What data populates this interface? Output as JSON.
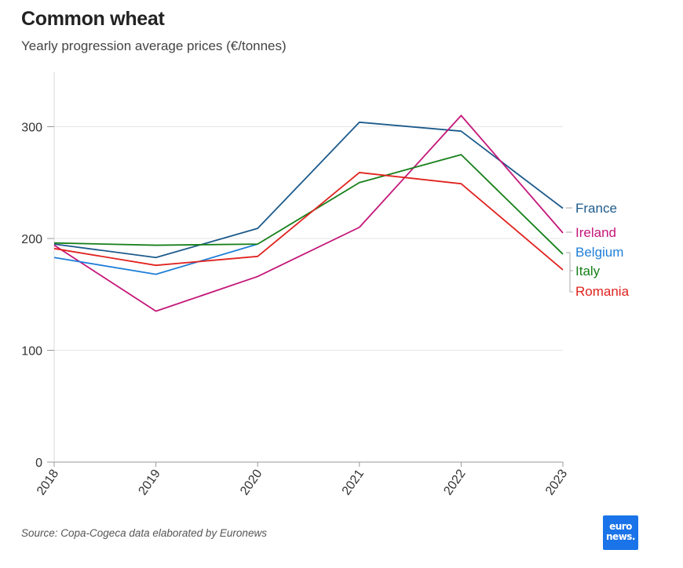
{
  "header": {
    "title": "Common wheat",
    "subtitle": "Yearly progression average prices (€/tonnes)"
  },
  "footer": {
    "source": "Source: Copa-Cogeca data elaborated by Euronews",
    "logo_line1": "euro",
    "logo_line2": "news."
  },
  "chart_data": {
    "type": "line",
    "title": "Common wheat",
    "subtitle": "Yearly progression average prices (€/tonnes)",
    "xlabel": "",
    "ylabel": "",
    "x": [
      "2018",
      "2019",
      "2020",
      "2021",
      "2022",
      "2023"
    ],
    "ylim": [
      0,
      350
    ],
    "yticks": [
      0,
      100,
      200,
      300
    ],
    "grid": true,
    "legend": "right-end labels",
    "series": [
      {
        "name": "France",
        "color": "#1d5b8c",
        "values": [
          195,
          183,
          209,
          304,
          296,
          227
        ]
      },
      {
        "name": "Ireland",
        "color": "#c4177a",
        "values": [
          194,
          135,
          166,
          210,
          310,
          205
        ]
      },
      {
        "name": "Belgium",
        "color": "#1f7fd8",
        "values": [
          183,
          168,
          195,
          null,
          null,
          null
        ]
      },
      {
        "name": "Italy",
        "color": "#17801a",
        "values": [
          196,
          194,
          195,
          250,
          275,
          186
        ]
      },
      {
        "name": "Romania",
        "color": "#e0231f",
        "values": [
          191,
          176,
          184,
          259,
          249,
          172
        ]
      }
    ]
  }
}
